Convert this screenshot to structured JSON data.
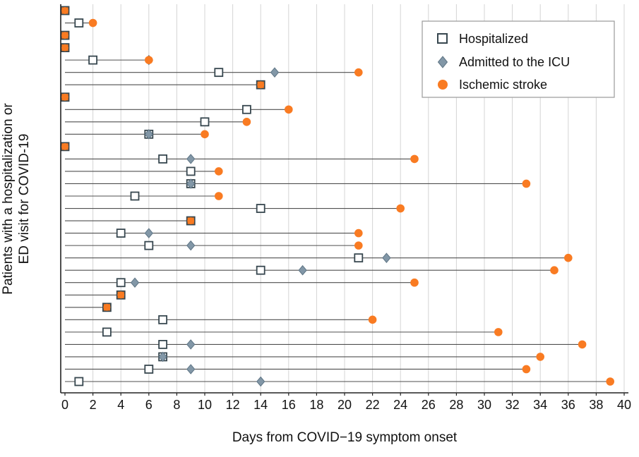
{
  "colors": {
    "stroke_circle": "#f97b22",
    "icu_diamond": "#8297a7",
    "icu_outline": "#5f7585",
    "square_outline": "#37474f",
    "line": "#4f4f4f",
    "grid": "#d4d4d4",
    "axis": "#222222"
  },
  "chart_data": {
    "type": "scatter",
    "title": "",
    "xlabel": "Days from COVID−19 symptom onset",
    "ylabel_line1": "Patients with a hospitalization or",
    "ylabel_line2": "ED visit for  COVID-19",
    "xlim": [
      0,
      40
    ],
    "xticks": [
      0,
      2,
      4,
      6,
      8,
      10,
      12,
      14,
      16,
      18,
      20,
      22,
      24,
      26,
      28,
      30,
      32,
      34,
      36,
      38,
      40
    ],
    "grid": true,
    "legend_position": "top-right",
    "legend": [
      {
        "label": "Hospitalized",
        "marker": "open-square",
        "color": "#37474f"
      },
      {
        "label": "Admitted to the ICU",
        "marker": "filled-diamond",
        "color": "#8297a7"
      },
      {
        "label": "Ischemic stroke",
        "marker": "filled-circle",
        "color": "#f97b22"
      }
    ],
    "n_patients": 31,
    "patients": [
      {
        "hospitalized": 0,
        "icu": null,
        "stroke": 0
      },
      {
        "hospitalized": 1,
        "icu": null,
        "stroke": 2
      },
      {
        "hospitalized": 0,
        "icu": null,
        "stroke": 0
      },
      {
        "hospitalized": 0,
        "icu": null,
        "stroke": 0
      },
      {
        "hospitalized": 2,
        "icu": 6,
        "stroke": 6
      },
      {
        "hospitalized": 11,
        "icu": 15,
        "stroke": 21
      },
      {
        "hospitalized": 14,
        "icu": null,
        "stroke": 14
      },
      {
        "hospitalized": 0,
        "icu": null,
        "stroke": 0
      },
      {
        "hospitalized": 13,
        "icu": null,
        "stroke": 16
      },
      {
        "hospitalized": 10,
        "icu": null,
        "stroke": 13
      },
      {
        "hospitalized": 6,
        "icu": 6,
        "stroke": 10
      },
      {
        "hospitalized": 0,
        "icu": null,
        "stroke": 0
      },
      {
        "hospitalized": 7,
        "icu": 9,
        "stroke": 25
      },
      {
        "hospitalized": 9,
        "icu": null,
        "stroke": 11
      },
      {
        "hospitalized": 9,
        "icu": 9,
        "stroke": 33
      },
      {
        "hospitalized": 5,
        "icu": null,
        "stroke": 11
      },
      {
        "hospitalized": 14,
        "icu": null,
        "stroke": 24
      },
      {
        "hospitalized": 9,
        "icu": null,
        "stroke": 9
      },
      {
        "hospitalized": 4,
        "icu": 6,
        "stroke": 21
      },
      {
        "hospitalized": 6,
        "icu": 9,
        "stroke": 21
      },
      {
        "hospitalized": 21,
        "icu": 23,
        "stroke": 36
      },
      {
        "hospitalized": 14,
        "icu": 17,
        "stroke": 35
      },
      {
        "hospitalized": 4,
        "icu": 5,
        "stroke": 25
      },
      {
        "hospitalized": 4,
        "icu": null,
        "stroke": 4
      },
      {
        "hospitalized": 3,
        "icu": null,
        "stroke": 3
      },
      {
        "hospitalized": 7,
        "icu": null,
        "stroke": 22
      },
      {
        "hospitalized": 3,
        "icu": null,
        "stroke": 31
      },
      {
        "hospitalized": 7,
        "icu": 9,
        "stroke": 37
      },
      {
        "hospitalized": 7,
        "icu": 7,
        "stroke": 34
      },
      {
        "hospitalized": 6,
        "icu": 9,
        "stroke": 33
      },
      {
        "hospitalized": 1,
        "icu": 14,
        "stroke": 39
      }
    ]
  }
}
